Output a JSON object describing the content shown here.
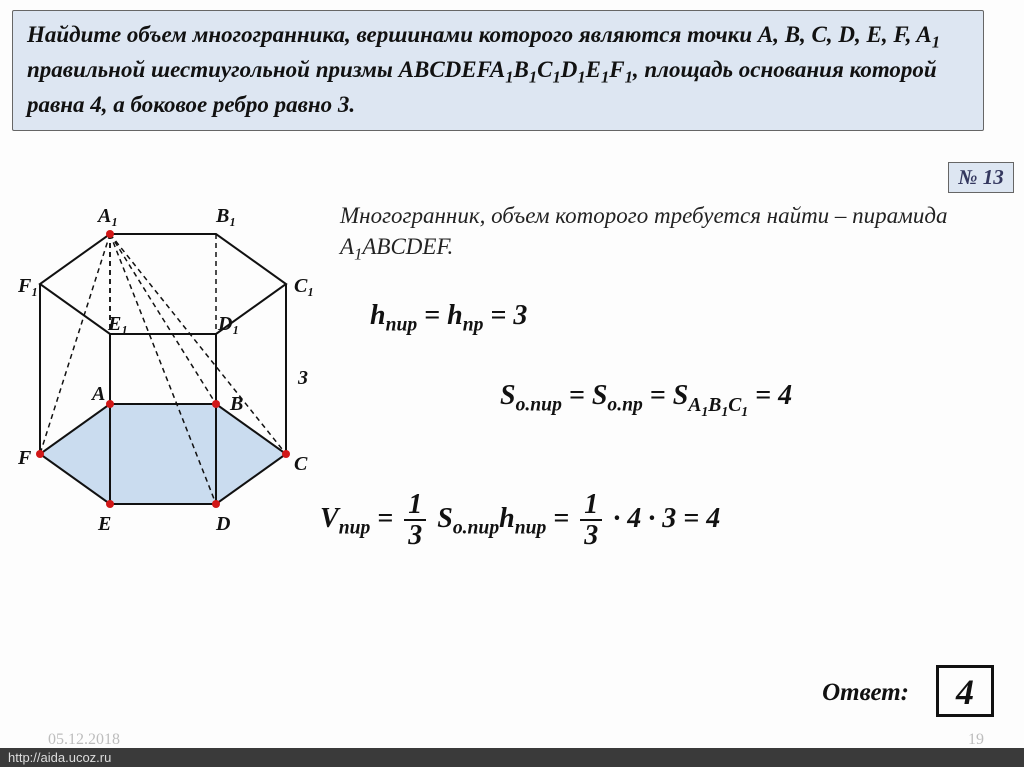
{
  "problem": {
    "text_html": "Найдите объем многогранника, вершинами которого являются точки A, B, C, D, E, F, A<span class=\"sub\">1</span>&nbsp; правильной шестиугольной призмы ABCDEFA<span class=\"sub\">1</span>B<span class=\"sub\">1</span>C<span class=\"sub\">1</span>D<span class=\"sub\">1</span>E<span class=\"sub\">1</span>F<span class=\"sub\">1</span>, площадь основания которой равна 4, а боковое ребро равно 3.",
    "number": "№ 13"
  },
  "explain_html": "Многогранник, объем которого требуется найти – пирамида A<span class=\"sub\">1</span>ABCDEF.",
  "formulas": {
    "h": "h<span class=\"msub\">пир</span> = h<span class=\"msub\">пр</span> = 3",
    "s": "S<span class=\"msub\">о.пир</span> = S<span class=\"msub\">о.пр</span> = S<span class=\"msub\">A<span class=\"msub\">1</span>B<span class=\"msub\">1</span>C<span class=\"msub\">1</span></span> = 4",
    "v": "V<span class=\"msub\">пир</span> = <span class=\"frac\"><span class=\"num\">1</span><span class=\"den\">3</span></span> S<span class=\"msub\">о.пир</span>h<span class=\"msub\">пир</span> = <span class=\"frac\"><span class=\"num\">1</span><span class=\"den\">3</span></span> · 4 · 3 = 4"
  },
  "answer": {
    "label": "Ответ:",
    "value": "4"
  },
  "footer": {
    "date": "05.12.2018",
    "url": "http://aida.ucoz.ru",
    "slide": "19"
  },
  "diagram": {
    "edge_label": "3",
    "colors": {
      "fill": "#a8c7e6",
      "stroke": "#111",
      "vertex": "#d11717"
    },
    "labels": {
      "A1": "A₁",
      "B1": "B₁",
      "C1": "C₁",
      "D1": "D₁",
      "E1": "E₁",
      "F1": "F₁",
      "A": "A",
      "B": "B",
      "C": "C",
      "D": "D",
      "E": "E",
      "F": "F"
    }
  }
}
